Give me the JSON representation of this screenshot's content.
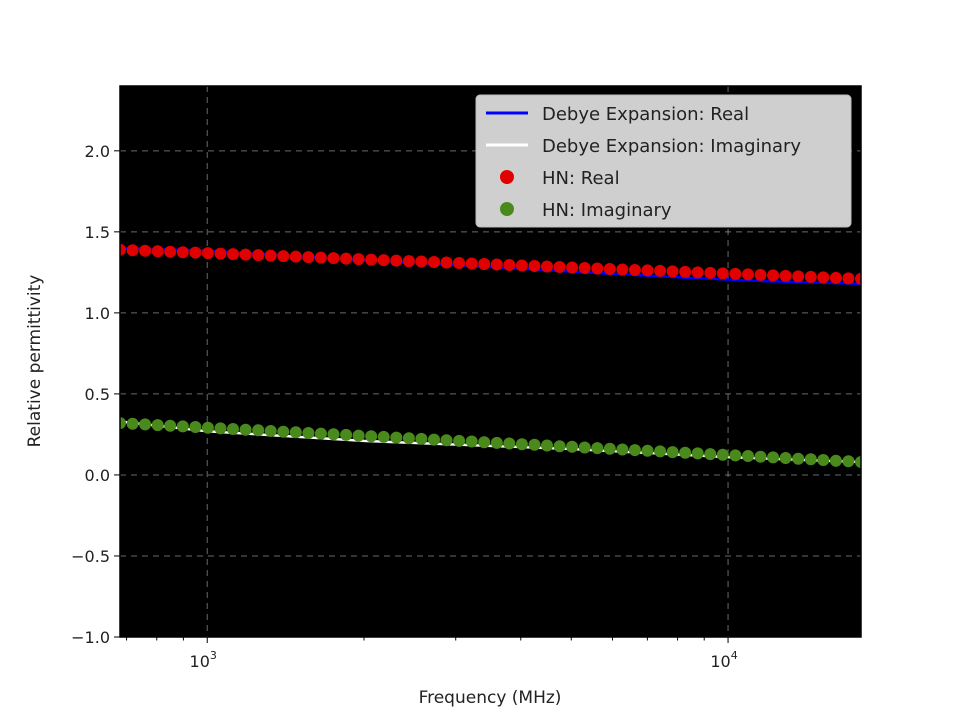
{
  "chart_data": {
    "type": "line",
    "xlabel": "Frequency (MHz)",
    "ylabel": "Relative permittivity",
    "xscale": "log",
    "xlim": [
      680,
      18000
    ],
    "ylim": [
      -1.0,
      2.4
    ],
    "grid": true,
    "background": "#000000",
    "legend_position": "top-right",
    "y_ticks": [
      {
        "value": -1.0,
        "label": "−1.0"
      },
      {
        "value": -0.5,
        "label": "−0.5"
      },
      {
        "value": 0.0,
        "label": "0.0"
      },
      {
        "value": 0.5,
        "label": "0.5"
      },
      {
        "value": 1.0,
        "label": "1.0"
      },
      {
        "value": 1.5,
        "label": "1.5"
      },
      {
        "value": 2.0,
        "label": "2.0"
      }
    ],
    "x_ticks": [
      {
        "value": 1000,
        "base": "10",
        "exp": "3"
      },
      {
        "value": 10000,
        "base": "10",
        "exp": "4"
      }
    ],
    "legend": [
      {
        "label": "Debye Expansion: Real",
        "marker": "line",
        "color": "#0000ff"
      },
      {
        "label": "Debye Expansion: Imaginary",
        "marker": "line",
        "color": "#ffffff"
      },
      {
        "label": "HN: Real",
        "marker": "dot",
        "color": "#e00000"
      },
      {
        "label": "HN: Imaginary",
        "marker": "dot",
        "color": "#4a8a1c"
      }
    ],
    "series": [
      {
        "name": "Debye Expansion: Real",
        "style": "line",
        "color": "#0000ff",
        "x": [
          680,
          1000,
          1500,
          2000,
          3000,
          5000,
          8000,
          12000,
          18000
        ],
        "y": [
          1.4,
          1.385,
          1.35,
          1.325,
          1.295,
          1.255,
          1.22,
          1.195,
          1.18
        ]
      },
      {
        "name": "Debye Expansion: Imaginary",
        "style": "line",
        "color": "#ffffff",
        "x": [
          680,
          1000,
          2000,
          5000,
          10000,
          18000
        ],
        "y": [
          0.33,
          0.27,
          0.21,
          0.16,
          0.11,
          0.08
        ]
      },
      {
        "name": "HN: Real",
        "style": "dots",
        "color": "#e00000",
        "x": [
          680,
          18000
        ],
        "y_start": 1.39,
        "y_end": 1.21,
        "count": 60
      },
      {
        "name": "HN: Imaginary",
        "style": "dots",
        "color": "#4a8a1c",
        "x": [
          680,
          18000
        ],
        "y_start": 0.32,
        "y_end": 0.08,
        "count": 60
      }
    ]
  }
}
